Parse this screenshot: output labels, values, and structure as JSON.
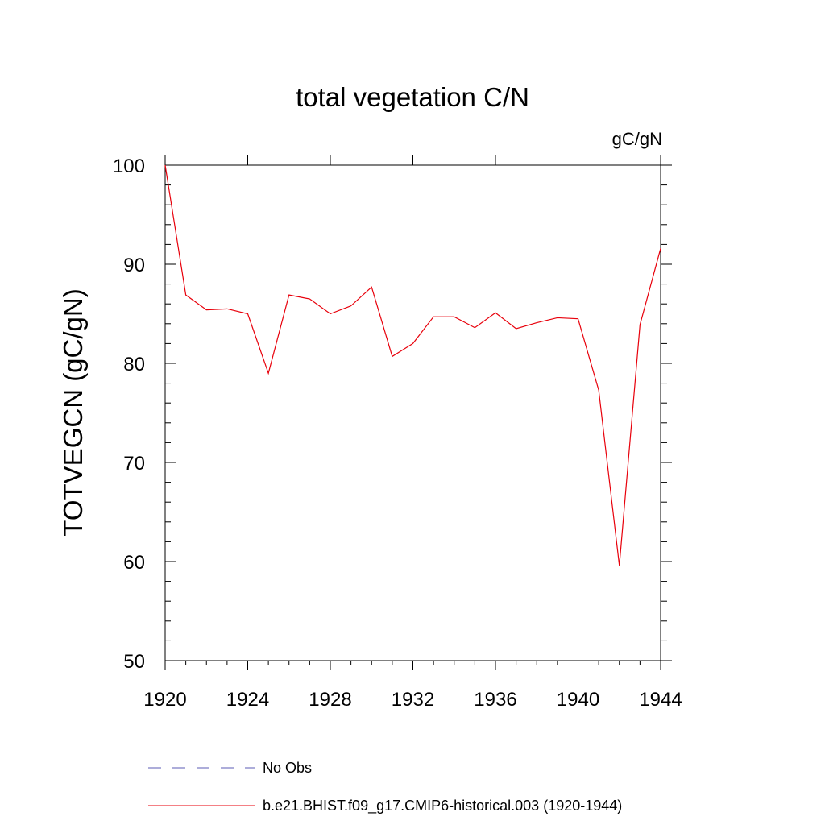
{
  "chart_data": {
    "type": "line",
    "title": "total vegetation C/N",
    "units_label": "gC/gN",
    "ylabel": "TOTVEGCN  (gC/gN)",
    "xlabel": "",
    "xlim": [
      1920,
      1944
    ],
    "ylim": [
      50,
      100
    ],
    "x_ticks": [
      1920,
      1924,
      1928,
      1932,
      1936,
      1940,
      1944
    ],
    "x_tick_labels": [
      "1920",
      "1924",
      "1928",
      "1932",
      "1936",
      "1940",
      "1944"
    ],
    "y_ticks": [
      50,
      60,
      70,
      80,
      90,
      100
    ],
    "y_tick_labels": [
      "50",
      "60",
      "70",
      "80",
      "90",
      "100"
    ],
    "grid": false,
    "legend_position": "bottom",
    "series": [
      {
        "name": "b.e21.BHIST.f09_g17.CMIP6-historical.003 (1920-1944)",
        "color": "#e8000b",
        "style": "solid",
        "x": [
          1920,
          1921,
          1922,
          1923,
          1924,
          1925,
          1926,
          1927,
          1928,
          1929,
          1930,
          1931,
          1932,
          1933,
          1934,
          1935,
          1936,
          1937,
          1938,
          1939,
          1940,
          1941,
          1942,
          1943,
          1944
        ],
        "values": [
          100.0,
          86.9,
          85.4,
          85.5,
          85.0,
          79.0,
          86.9,
          86.5,
          85.0,
          85.8,
          87.7,
          80.7,
          82.0,
          84.7,
          84.7,
          83.6,
          85.1,
          83.5,
          84.1,
          84.6,
          84.5,
          77.3,
          59.6,
          83.9,
          91.6
        ]
      }
    ],
    "legend": [
      {
        "label": "No Obs",
        "color": "#5b5bb5",
        "style": "dashed"
      },
      {
        "label": "b.e21.BHIST.f09_g17.CMIP6-historical.003 (1920-1944)",
        "color": "#e8000b",
        "style": "solid"
      }
    ]
  }
}
